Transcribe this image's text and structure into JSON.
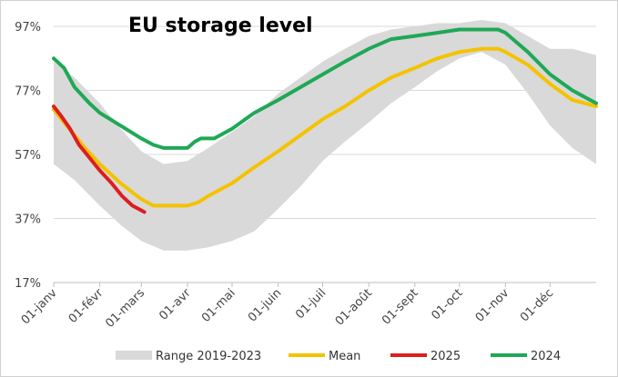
{
  "chart_data": {
    "type": "line",
    "title": "EU storage level",
    "xlabel": "",
    "ylabel": "",
    "x_unit": "day of year",
    "x_tick_labels": [
      "01-janv",
      "01-févr",
      "01-mars",
      "01-avr",
      "01-mai",
      "01-juin",
      "01-juil",
      "01-août",
      "01-sept",
      "01-oct",
      "01-nov",
      "01-déc"
    ],
    "x_tick_days": [
      1,
      32,
      60,
      91,
      121,
      152,
      182,
      213,
      244,
      274,
      305,
      335
    ],
    "xlim": [
      1,
      366
    ],
    "y_tick_labels": [
      "17%",
      "37%",
      "57%",
      "77%",
      "97%"
    ],
    "y_tick_values": [
      17,
      37,
      57,
      77,
      97
    ],
    "ylim": [
      17,
      97
    ],
    "grid": "horizontal",
    "legend_position": "bottom",
    "range": {
      "name": "Range 2019-2023",
      "color": "#d9d9d9",
      "days": [
        1,
        15,
        32,
        46,
        60,
        75,
        91,
        105,
        121,
        136,
        152,
        167,
        182,
        197,
        213,
        228,
        244,
        259,
        274,
        289,
        305,
        320,
        335,
        350,
        366
      ],
      "lower": [
        54,
        49,
        41,
        35,
        30,
        27,
        27,
        28,
        30,
        33,
        40,
        47,
        55,
        61,
        67,
        73,
        78,
        83,
        87,
        89,
        85,
        76,
        66,
        59,
        54
      ],
      "upper": [
        86,
        81,
        73,
        65,
        58,
        54,
        55,
        59,
        64,
        69,
        76,
        81,
        86,
        90,
        94,
        96,
        97,
        98,
        98,
        99,
        98,
        94,
        90,
        90,
        88
      ]
    },
    "series": [
      {
        "name": "Mean",
        "color": "#f5c200",
        "x": [
          1,
          8,
          15,
          22,
          32,
          46,
          60,
          68,
          75,
          84,
          91,
          98,
          105,
          121,
          136,
          152,
          167,
          182,
          197,
          213,
          228,
          244,
          259,
          274,
          289,
          300,
          305,
          320,
          335,
          350,
          366
        ],
        "y": [
          71,
          67,
          63,
          59,
          54,
          48,
          43,
          41,
          41,
          41,
          41,
          42,
          44,
          48,
          53,
          58,
          63,
          68,
          72,
          77,
          81,
          84,
          87,
          89,
          90,
          90,
          89,
          85,
          79,
          74,
          72
        ]
      },
      {
        "name": "2025",
        "color": "#dd1e1e",
        "x": [
          1,
          6,
          12,
          18,
          25,
          32,
          40,
          47,
          54,
          58,
          62
        ],
        "y": [
          72,
          69,
          65,
          60,
          56,
          52,
          48,
          44,
          41,
          40,
          39
        ]
      },
      {
        "name": "2024",
        "color": "#1fa856",
        "x": [
          1,
          8,
          15,
          25,
          32,
          46,
          60,
          68,
          75,
          84,
          91,
          96,
          100,
          105,
          109,
          121,
          136,
          152,
          167,
          182,
          197,
          213,
          228,
          244,
          259,
          274,
          289,
          300,
          305,
          320,
          335,
          350,
          366
        ],
        "y": [
          87,
          84,
          78,
          73,
          70,
          66,
          62,
          60,
          59,
          59,
          59,
          61,
          62,
          62,
          62,
          65,
          70,
          74,
          78,
          82,
          86,
          90,
          93,
          94,
          95,
          96,
          96,
          96,
          95,
          89,
          82,
          77,
          73
        ]
      }
    ]
  }
}
